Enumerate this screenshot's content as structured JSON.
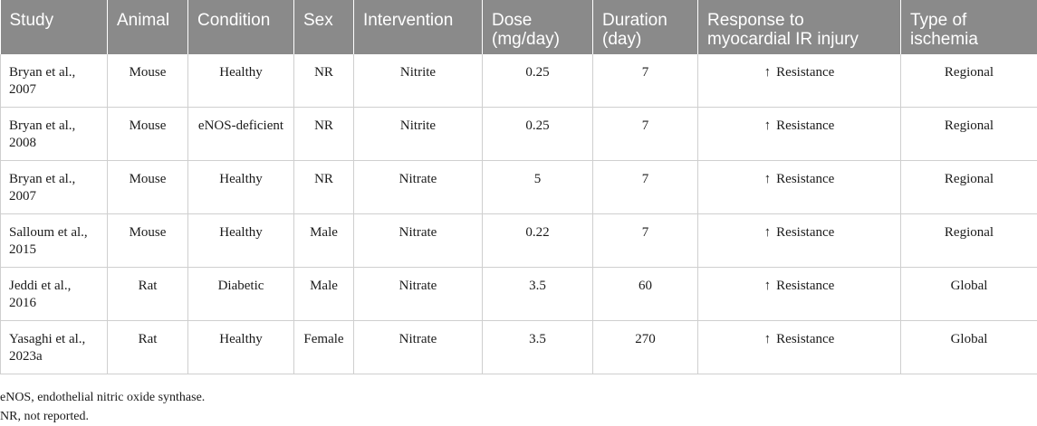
{
  "table": {
    "headers": [
      "Study",
      "Animal",
      "Condition",
      "Sex",
      "Intervention",
      "Dose (mg/day)",
      "Duration (day)",
      "Response to myocardial IR injury",
      "Type of ischemia"
    ],
    "rows": [
      {
        "study": "Bryan et al., 2007",
        "animal": "Mouse",
        "condition": "Healthy",
        "sex": "NR",
        "intervention": "Nitrite",
        "dose": "0.25",
        "duration": "7",
        "arrow": "↑",
        "response": "Resistance",
        "ischemia": "Regional"
      },
      {
        "study": "Bryan et al., 2008",
        "animal": "Mouse",
        "condition": "eNOS-deficient",
        "sex": "NR",
        "intervention": "Nitrite",
        "dose": "0.25",
        "duration": "7",
        "arrow": "↑",
        "response": "Resistance",
        "ischemia": "Regional"
      },
      {
        "study": "Bryan et al., 2007",
        "animal": "Mouse",
        "condition": "Healthy",
        "sex": "NR",
        "intervention": "Nitrate",
        "dose": "5",
        "duration": "7",
        "arrow": "↑",
        "response": "Resistance",
        "ischemia": "Regional"
      },
      {
        "study": "Salloum et al., 2015",
        "animal": "Mouse",
        "condition": "Healthy",
        "sex": "Male",
        "intervention": "Nitrate",
        "dose": "0.22",
        "duration": "7",
        "arrow": "↑",
        "response": "Resistance",
        "ischemia": "Regional"
      },
      {
        "study": "Jeddi et al., 2016",
        "animal": "Rat",
        "condition": "Diabetic",
        "sex": "Male",
        "intervention": "Nitrate",
        "dose": "3.5",
        "duration": "60",
        "arrow": "↑",
        "response": "Resistance",
        "ischemia": "Global"
      },
      {
        "study": "Yasaghi et al., 2023a",
        "animal": "Rat",
        "condition": "Healthy",
        "sex": "Female",
        "intervention": "Nitrate",
        "dose": "3.5",
        "duration": "270",
        "arrow": "↑",
        "response": "Resistance",
        "ischemia": "Global"
      }
    ]
  },
  "footnotes": [
    "eNOS, endothelial nitric oxide synthase.",
    "NR, not reported."
  ]
}
